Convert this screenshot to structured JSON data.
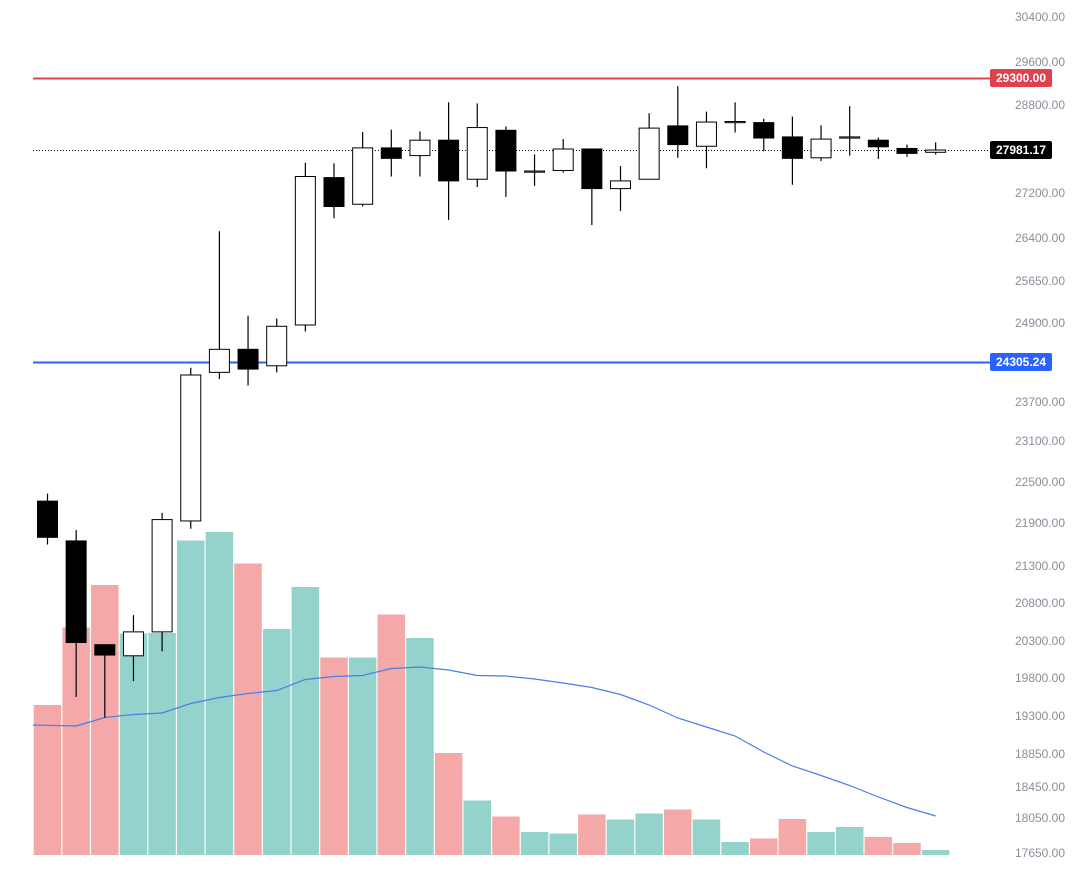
{
  "chart_data": {
    "type": "candlestick",
    "y_axis": {
      "ticks": [
        "30400.00",
        "29600.00",
        "28800.00",
        "27200.00",
        "26400.00",
        "25650.00",
        "24900.00",
        "23700.00",
        "23100.00",
        "22500.00",
        "21900.00",
        "21300.00",
        "20800.00",
        "20300.00",
        "19800.00",
        "19300.00",
        "18850.00",
        "18450.00",
        "18050.00",
        "17650.00"
      ],
      "tick_values": [
        30400,
        29600,
        28800,
        27200,
        26400,
        25650,
        24900,
        23700,
        23100,
        22500,
        21900,
        21300,
        20800,
        20300,
        19800,
        19300,
        18850,
        18450,
        18050,
        17650
      ],
      "scale": "nonlinear"
    },
    "price_lines": [
      {
        "name": "resistance",
        "value": 29300.0,
        "label": "29300.00",
        "color": "#e0424d"
      },
      {
        "name": "support",
        "value": 24305.24,
        "label": "24305.24",
        "color": "#2962ff"
      },
      {
        "name": "last-price",
        "value": 27981.17,
        "label": "27981.17",
        "color": "#000000",
        "style": "dotted"
      }
    ],
    "candles": [
      {
        "o": 22220,
        "h": 22330,
        "l": 21600,
        "c": 21700
      },
      {
        "o": 21650,
        "h": 21800,
        "l": 19550,
        "c": 20280
      },
      {
        "o": 20250,
        "h": 20250,
        "l": 19280,
        "c": 20110
      },
      {
        "o": 20100,
        "h": 20640,
        "l": 19760,
        "c": 20420
      },
      {
        "o": 20420,
        "h": 22050,
        "l": 20160,
        "c": 21950
      },
      {
        "o": 21930,
        "h": 24220,
        "l": 21820,
        "c": 24110
      },
      {
        "o": 24150,
        "h": 26520,
        "l": 24050,
        "c": 24500
      },
      {
        "o": 24500,
        "h": 25030,
        "l": 23950,
        "c": 24200
      },
      {
        "o": 24250,
        "h": 24980,
        "l": 24150,
        "c": 24850
      },
      {
        "o": 24870,
        "h": 27750,
        "l": 24770,
        "c": 27500
      },
      {
        "o": 27480,
        "h": 27740,
        "l": 26750,
        "c": 26960
      },
      {
        "o": 27000,
        "h": 28310,
        "l": 26960,
        "c": 28020
      },
      {
        "o": 28020,
        "h": 28350,
        "l": 27500,
        "c": 27830
      },
      {
        "o": 27880,
        "h": 28320,
        "l": 27500,
        "c": 28160
      },
      {
        "o": 28160,
        "h": 28850,
        "l": 26720,
        "c": 27420
      },
      {
        "o": 27450,
        "h": 28830,
        "l": 27310,
        "c": 28390
      },
      {
        "o": 28340,
        "h": 28410,
        "l": 27130,
        "c": 27600
      },
      {
        "o": 27600,
        "h": 27900,
        "l": 27330,
        "c": 27600
      },
      {
        "o": 27610,
        "h": 28180,
        "l": 27570,
        "c": 28000
      },
      {
        "o": 28000,
        "h": 28000,
        "l": 26630,
        "c": 27280
      },
      {
        "o": 27280,
        "h": 27690,
        "l": 26880,
        "c": 27420
      },
      {
        "o": 27450,
        "h": 28650,
        "l": 27450,
        "c": 28380
      },
      {
        "o": 28420,
        "h": 29150,
        "l": 27840,
        "c": 28080
      },
      {
        "o": 28050,
        "h": 28680,
        "l": 27650,
        "c": 28490
      },
      {
        "o": 28500,
        "h": 28850,
        "l": 28300,
        "c": 28500
      },
      {
        "o": 28480,
        "h": 28550,
        "l": 27960,
        "c": 28200
      },
      {
        "o": 28220,
        "h": 28590,
        "l": 27350,
        "c": 27830
      },
      {
        "o": 27840,
        "h": 28430,
        "l": 27780,
        "c": 28180
      },
      {
        "o": 28200,
        "h": 28780,
        "l": 27880,
        "c": 28220
      },
      {
        "o": 28160,
        "h": 28210,
        "l": 27820,
        "c": 28040
      },
      {
        "o": 28010,
        "h": 28080,
        "l": 27860,
        "c": 27920
      },
      {
        "o": 27940,
        "h": 28120,
        "l": 27900,
        "c": 27981.17
      }
    ],
    "volume": {
      "values": [
        30.0,
        45.5,
        54.0,
        44.3,
        44.4,
        62.9,
        64.6,
        58.3,
        45.2,
        53.6,
        39.5,
        39.5,
        48.1,
        43.4,
        20.4,
        10.9,
        7.7,
        4.6,
        4.3,
        8.1,
        7.1,
        8.3,
        9.1,
        7.1,
        2.6,
        3.3,
        7.2,
        4.6,
        5.6,
        3.6,
        2.4,
        1.0
      ],
      "up_color": "#94d2cc",
      "down_color": "#f5a8a8",
      "ma": [
        26.0,
        25.8,
        27.5,
        28.1,
        28.4,
        30.3,
        31.5,
        32.3,
        32.9,
        35.1,
        35.7,
        35.9,
        37.3,
        37.6,
        37.0,
        35.9,
        35.8,
        35.2,
        34.4,
        33.5,
        32.1,
        30.0,
        27.4,
        25.6,
        23.8,
        20.6,
        17.8,
        15.9,
        13.9,
        11.6,
        9.5,
        7.8
      ],
      "ma_color": "#4a7ee8"
    }
  }
}
